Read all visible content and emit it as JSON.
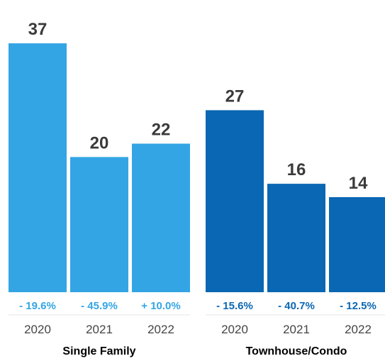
{
  "chart_data": {
    "type": "bar",
    "ylim": [
      0,
      40
    ],
    "groups": [
      {
        "label": "Single Family",
        "color": "#33a5e4",
        "bars": [
          {
            "year": "2020",
            "value": 37,
            "value_label": "37",
            "change": "- 19.6%"
          },
          {
            "year": "2021",
            "value": 20,
            "value_label": "20",
            "change": "- 45.9%"
          },
          {
            "year": "2022",
            "value": 22,
            "value_label": "22",
            "change": "+ 10.0%"
          }
        ]
      },
      {
        "label": "Townhouse/Condo",
        "color": "#0a67b3",
        "bars": [
          {
            "year": "2020",
            "value": 27,
            "value_label": "27",
            "change": "- 15.6%"
          },
          {
            "year": "2021",
            "value": 16,
            "value_label": "16",
            "change": "- 40.7%"
          },
          {
            "year": "2022",
            "value": 14,
            "value_label": "14",
            "change": "- 12.5%"
          }
        ]
      }
    ]
  }
}
